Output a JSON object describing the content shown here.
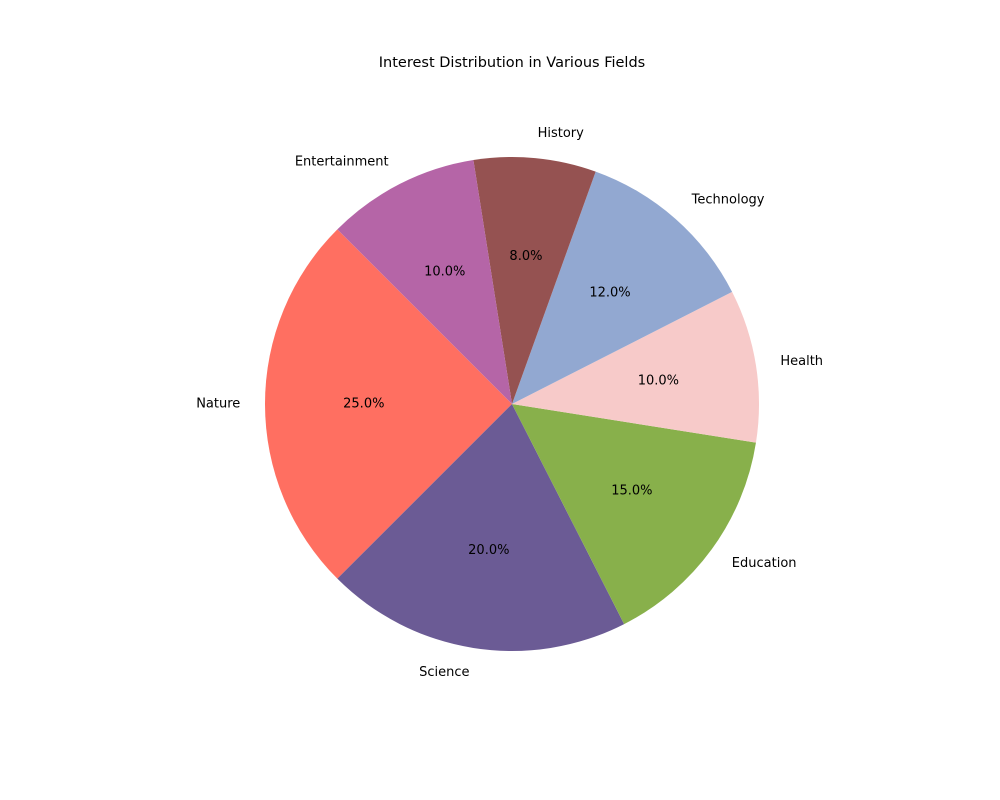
{
  "chart_data": {
    "type": "pie",
    "title": "Interest Distribution in Various Fields",
    "start_angle_deg": 135,
    "direction": "counterclockwise",
    "slices": [
      {
        "label": "Nature",
        "value": 25,
        "pct_label": "25.0%",
        "color": "#ff6f61"
      },
      {
        "label": "Science",
        "value": 20,
        "pct_label": "20.0%",
        "color": "#6b5b95"
      },
      {
        "label": "Education",
        "value": 15,
        "pct_label": "15.0%",
        "color": "#88b04b"
      },
      {
        "label": "Health",
        "value": 10,
        "pct_label": "10.0%",
        "color": "#f7cac9"
      },
      {
        "label": "Technology",
        "value": 12,
        "pct_label": "12.0%",
        "color": "#92a8d1"
      },
      {
        "label": "History",
        "value": 8,
        "pct_label": "8.0%",
        "color": "#955251"
      },
      {
        "label": "Entertainment",
        "value": 10,
        "pct_label": "10.0%",
        "color": "#b565a7"
      }
    ]
  }
}
